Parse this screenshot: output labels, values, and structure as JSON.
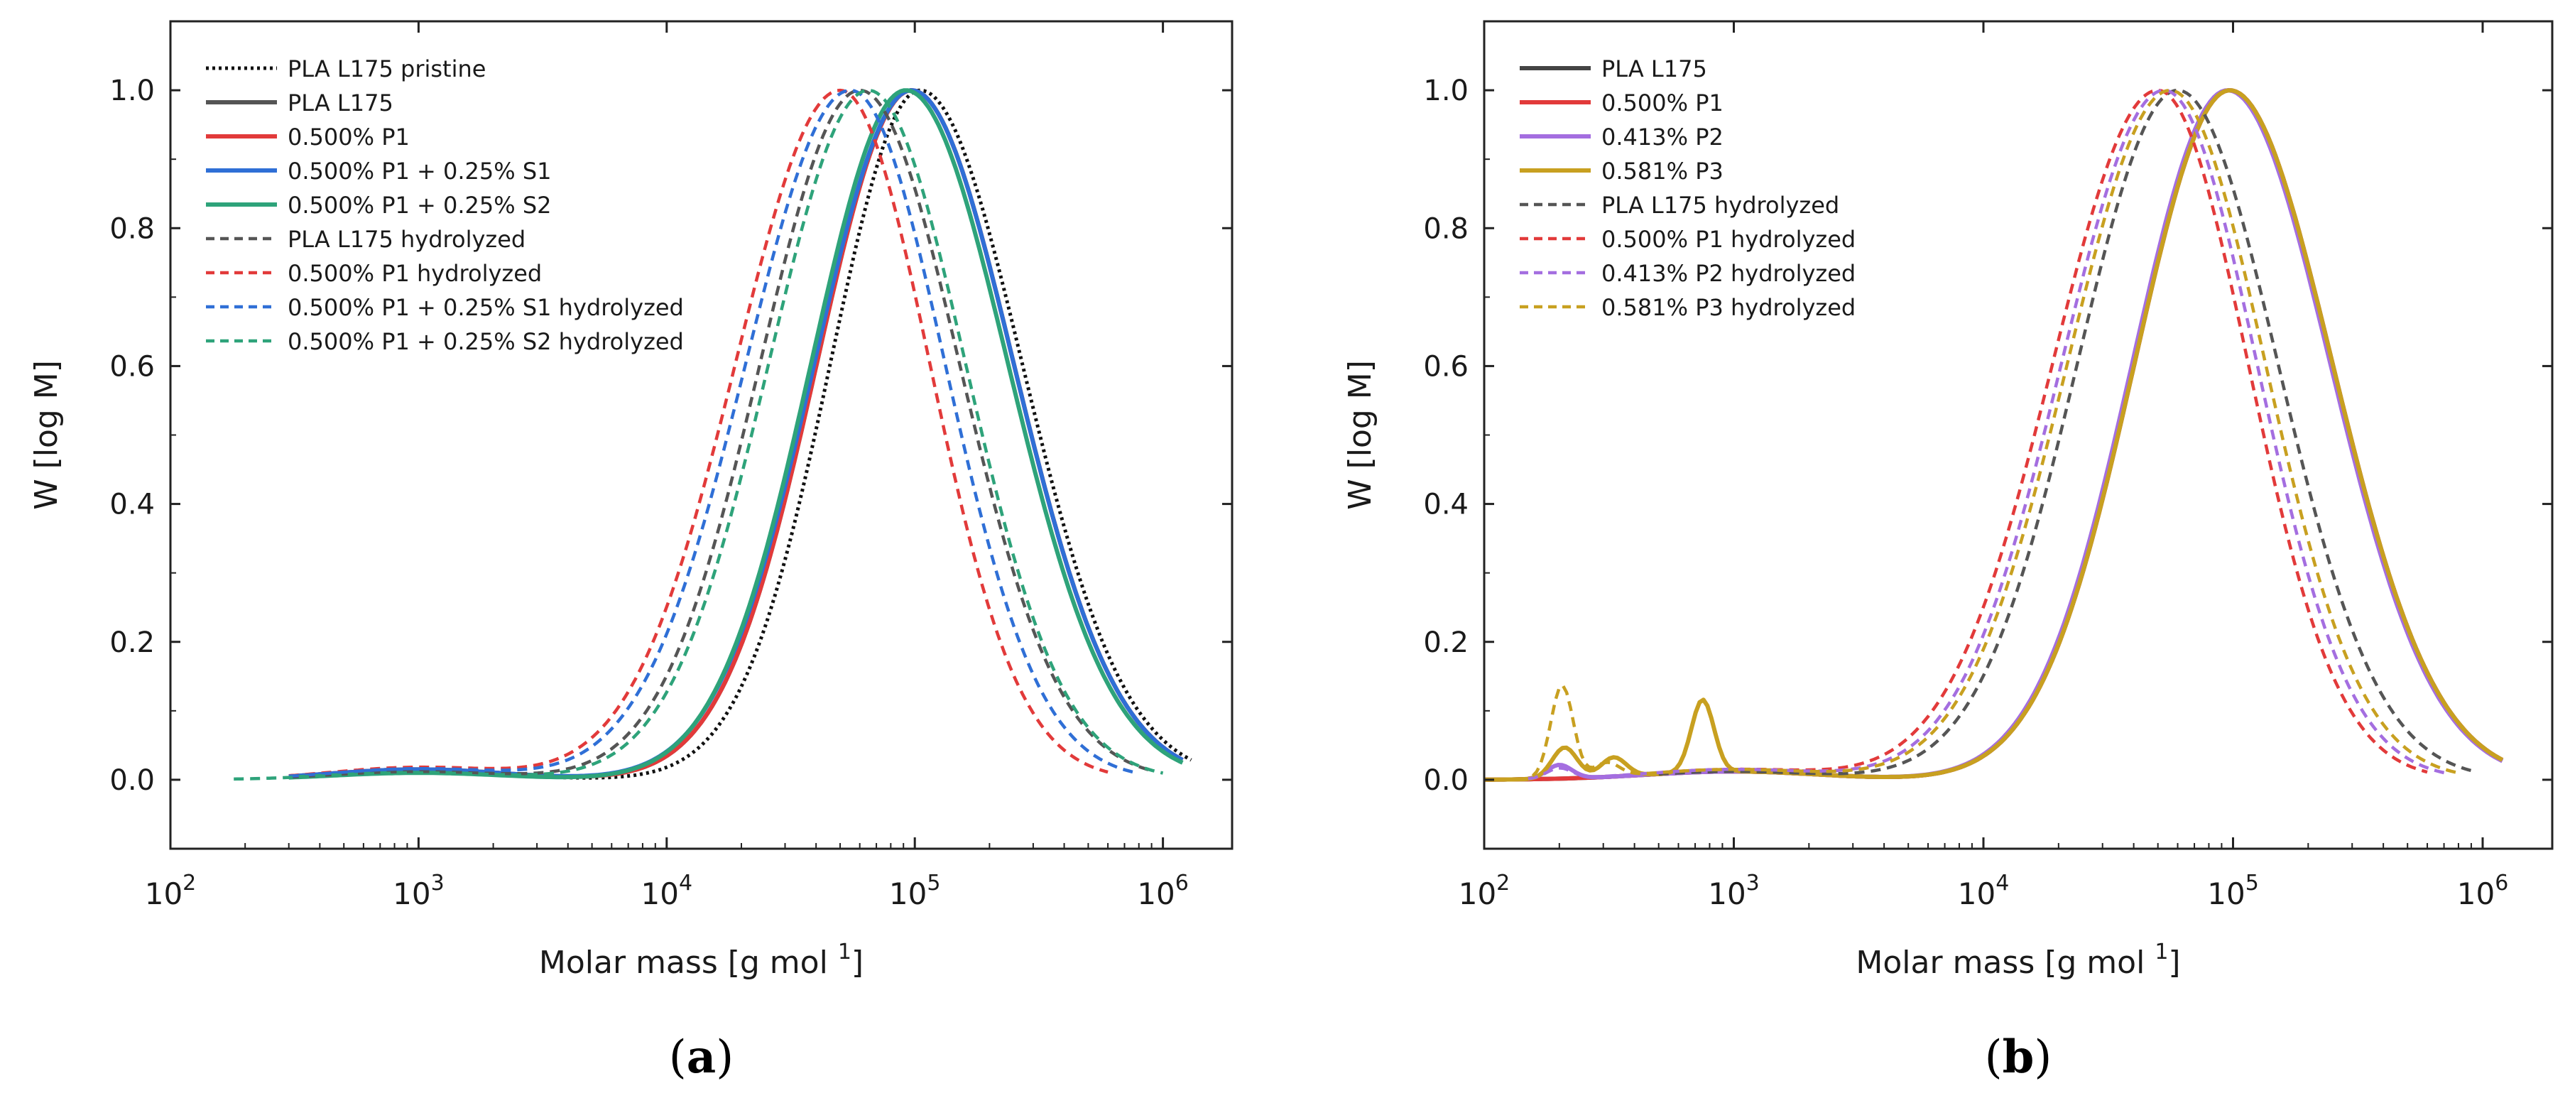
{
  "chart_data": [
    {
      "type": "line",
      "panel_label": "a",
      "xlabel": "Molar mass [g mol ",
      "xlabel_sup": "1",
      "ylabel": "W [log M]",
      "x_scale": "log",
      "xlim": [
        100,
        1900000
      ],
      "ylim": [
        -0.1,
        1.1
      ],
      "x_ticks": [
        {
          "value": 100,
          "base": "10",
          "exp": "2"
        },
        {
          "value": 1000,
          "base": "10",
          "exp": "3"
        },
        {
          "value": 10000,
          "base": "10",
          "exp": "4"
        },
        {
          "value": 100000,
          "base": "10",
          "exp": "5"
        },
        {
          "value": 1000000,
          "base": "10",
          "exp": "6"
        }
      ],
      "y_ticks": [
        "0.0",
        "0.2",
        "0.4",
        "0.6",
        "0.8",
        "1.0"
      ],
      "legend_position": "top-left",
      "series": [
        {
          "name": "PLA L175 pristine",
          "color": "#111111",
          "style": "dotted",
          "peak": 105000,
          "sigma_left": 0.36,
          "sigma_right": 0.41,
          "low_amp": 0.012,
          "x_min": 300,
          "x_max": 1300000
        },
        {
          "name": "PLA  L175",
          "color": "#555555",
          "style": "solid",
          "peak": 97000,
          "sigma_left": 0.38,
          "sigma_right": 0.41,
          "low_amp": 0.015,
          "x_min": 300,
          "x_max": 1200000
        },
        {
          "name": "0.500% P1",
          "color": "#e23a3a",
          "style": "solid",
          "peak": 97000,
          "sigma_left": 0.38,
          "sigma_right": 0.41,
          "low_amp": 0.015,
          "x_min": 300,
          "x_max": 1200000
        },
        {
          "name": "0.500% P1 + 0.25% S1",
          "color": "#2f6fd6",
          "style": "solid",
          "peak": 97000,
          "sigma_left": 0.39,
          "sigma_right": 0.41,
          "low_amp": 0.015,
          "x_min": 300,
          "x_max": 1200000
        },
        {
          "name": "0.500% P1 + 0.25% S2",
          "color": "#2ea37a",
          "style": "solid",
          "peak": 92000,
          "sigma_left": 0.38,
          "sigma_right": 0.41,
          "low_amp": 0.01,
          "x_min": 300,
          "x_max": 1200000
        },
        {
          "name": "PLA  L175 hydrolyzed",
          "color": "#555555",
          "style": "dashed",
          "peak": 60000,
          "sigma_left": 0.4,
          "sigma_right": 0.4,
          "low_amp": 0.012,
          "x_min": 300,
          "x_max": 900000
        },
        {
          "name": "0.500% P1 hydrolyzed",
          "color": "#e23a3a",
          "style": "dashed",
          "peak": 50000,
          "sigma_left": 0.42,
          "sigma_right": 0.36,
          "low_amp": 0.018,
          "x_min": 300,
          "x_max": 600000
        },
        {
          "name": "0.500% P1 + 0.25% S1 hydrolyzed",
          "color": "#2f6fd6",
          "style": "dashed",
          "peak": 55000,
          "sigma_left": 0.42,
          "sigma_right": 0.38,
          "low_amp": 0.016,
          "x_min": 300,
          "x_max": 800000
        },
        {
          "name": "0.500% P1 + 0.25% S2 hydrolyzed",
          "color": "#2ea37a",
          "style": "dashed",
          "peak": 65000,
          "sigma_left": 0.4,
          "sigma_right": 0.39,
          "low_amp": 0.01,
          "x_min": 180,
          "x_max": 1000000
        }
      ]
    },
    {
      "type": "line",
      "panel_label": "b",
      "xlabel": "Molar mass [g mol ",
      "xlabel_sup": "1",
      "ylabel": "W [log M]",
      "x_scale": "log",
      "xlim": [
        100,
        1900000
      ],
      "ylim": [
        -0.1,
        1.1
      ],
      "x_ticks": [
        {
          "value": 100,
          "base": "10",
          "exp": "2"
        },
        {
          "value": 1000,
          "base": "10",
          "exp": "3"
        },
        {
          "value": 10000,
          "base": "10",
          "exp": "4"
        },
        {
          "value": 100000,
          "base": "10",
          "exp": "5"
        },
        {
          "value": 1000000,
          "base": "10",
          "exp": "6"
        }
      ],
      "y_ticks": [
        "0.0",
        "0.2",
        "0.4",
        "0.6",
        "0.8",
        "1.0"
      ],
      "legend_position": "top-left",
      "series": [
        {
          "name": "PLA  L175",
          "color": "#444444",
          "style": "solid",
          "peak": 97000,
          "sigma_left": 0.38,
          "sigma_right": 0.41,
          "low_amp": 0.012,
          "x_min": 100,
          "x_max": 1200000
        },
        {
          "name": "0.500% P1",
          "color": "#e23a3a",
          "style": "solid",
          "peak": 97000,
          "sigma_left": 0.38,
          "sigma_right": 0.41,
          "low_amp": 0.012,
          "x_min": 100,
          "x_max": 1200000
        },
        {
          "name": "0.413% P2",
          "color": "#a46ee0",
          "style": "solid",
          "peak": 95000,
          "sigma_left": 0.38,
          "sigma_right": 0.41,
          "low_amp": 0.012,
          "x_min": 150,
          "x_max": 1200000,
          "bumps": [
            {
              "x": 200,
              "amp": 0.02,
              "w": 0.05
            }
          ]
        },
        {
          "name": "0.581% P3",
          "color": "#c8a020",
          "style": "solid",
          "peak": 97000,
          "sigma_left": 0.38,
          "sigma_right": 0.41,
          "low_amp": 0.012,
          "x_min": 100,
          "x_max": 1200000,
          "bumps": [
            {
              "x": 210,
              "amp": 0.045,
              "w": 0.05
            },
            {
              "x": 330,
              "amp": 0.028,
              "w": 0.05
            },
            {
              "x": 750,
              "amp": 0.105,
              "w": 0.045
            }
          ]
        },
        {
          "name": "PLA  L175 hydrolyzed",
          "color": "#555555",
          "style": "dashed",
          "peak": 60000,
          "sigma_left": 0.4,
          "sigma_right": 0.4,
          "low_amp": 0.012,
          "x_min": 500,
          "x_max": 900000
        },
        {
          "name": "0.500% P1 hydrolyzed",
          "color": "#e23a3a",
          "style": "dashed",
          "peak": 50000,
          "sigma_left": 0.42,
          "sigma_right": 0.36,
          "low_amp": 0.015,
          "x_min": 500,
          "x_max": 600000
        },
        {
          "name": "0.413% P2 hydrolyzed",
          "color": "#a46ee0",
          "style": "dashed",
          "peak": 53000,
          "sigma_left": 0.41,
          "sigma_right": 0.37,
          "low_amp": 0.015,
          "x_min": 150,
          "x_max": 700000,
          "bumps": [
            {
              "x": 200,
              "amp": 0.015,
              "w": 0.05
            }
          ]
        },
        {
          "name": "0.581% P3 hydrolyzed",
          "color": "#c8a020",
          "style": "dashed",
          "peak": 56000,
          "sigma_left": 0.41,
          "sigma_right": 0.38,
          "low_amp": 0.015,
          "x_min": 100,
          "x_max": 800000,
          "bumps": [
            {
              "x": 205,
              "amp": 0.135,
              "w": 0.045
            },
            {
              "x": 310,
              "amp": 0.02,
              "w": 0.05
            }
          ]
        }
      ]
    }
  ]
}
